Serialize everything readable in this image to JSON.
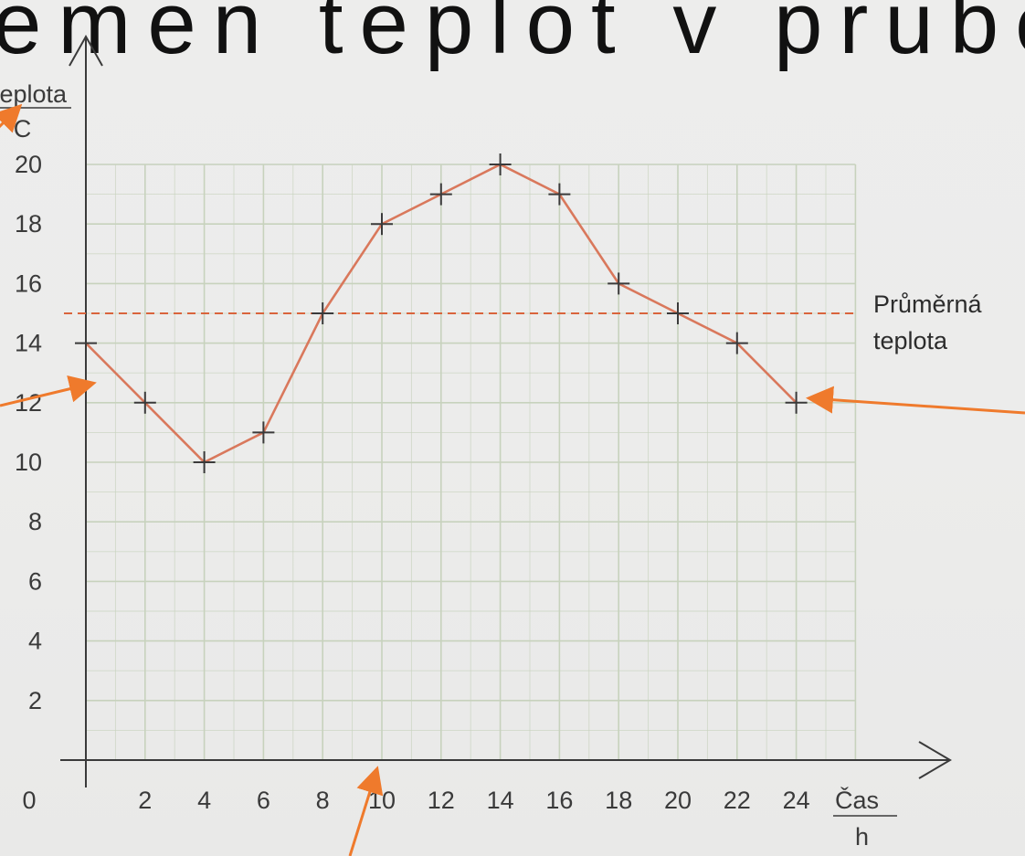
{
  "heading_fragment": "emen teplot v prubehu",
  "chart_data": {
    "type": "line",
    "x": [
      0,
      2,
      4,
      6,
      8,
      10,
      12,
      14,
      16,
      18,
      20,
      22,
      24
    ],
    "series": [
      {
        "values": [
          14,
          12,
          10,
          11,
          15,
          18,
          19,
          20,
          19,
          16,
          15,
          14,
          12
        ]
      }
    ],
    "xticks": [
      "2",
      "4",
      "6",
      "8",
      "10",
      "12",
      "14",
      "16",
      "18",
      "20",
      "22",
      "24"
    ],
    "yticks": [
      "2",
      "4",
      "6",
      "8",
      "10",
      "12",
      "14",
      "16",
      "18",
      "20"
    ],
    "origin_label": "0",
    "xlabel": "Čas",
    "xunit": "h",
    "ylabel": "teplota",
    "yunit": "°C",
    "xlim": [
      0,
      26
    ],
    "ylim": [
      0,
      20
    ],
    "grid": true,
    "reference_line": {
      "value": 15,
      "label_line1": "Průměrná",
      "label_line2": "teplota"
    },
    "colors": {
      "line": "#d9785c",
      "marker": "#3a3a3a",
      "average": "#d9643c",
      "grid": "#c7d2bd",
      "axis": "#3a3a3a",
      "arrow": "#ef7a2c"
    }
  }
}
